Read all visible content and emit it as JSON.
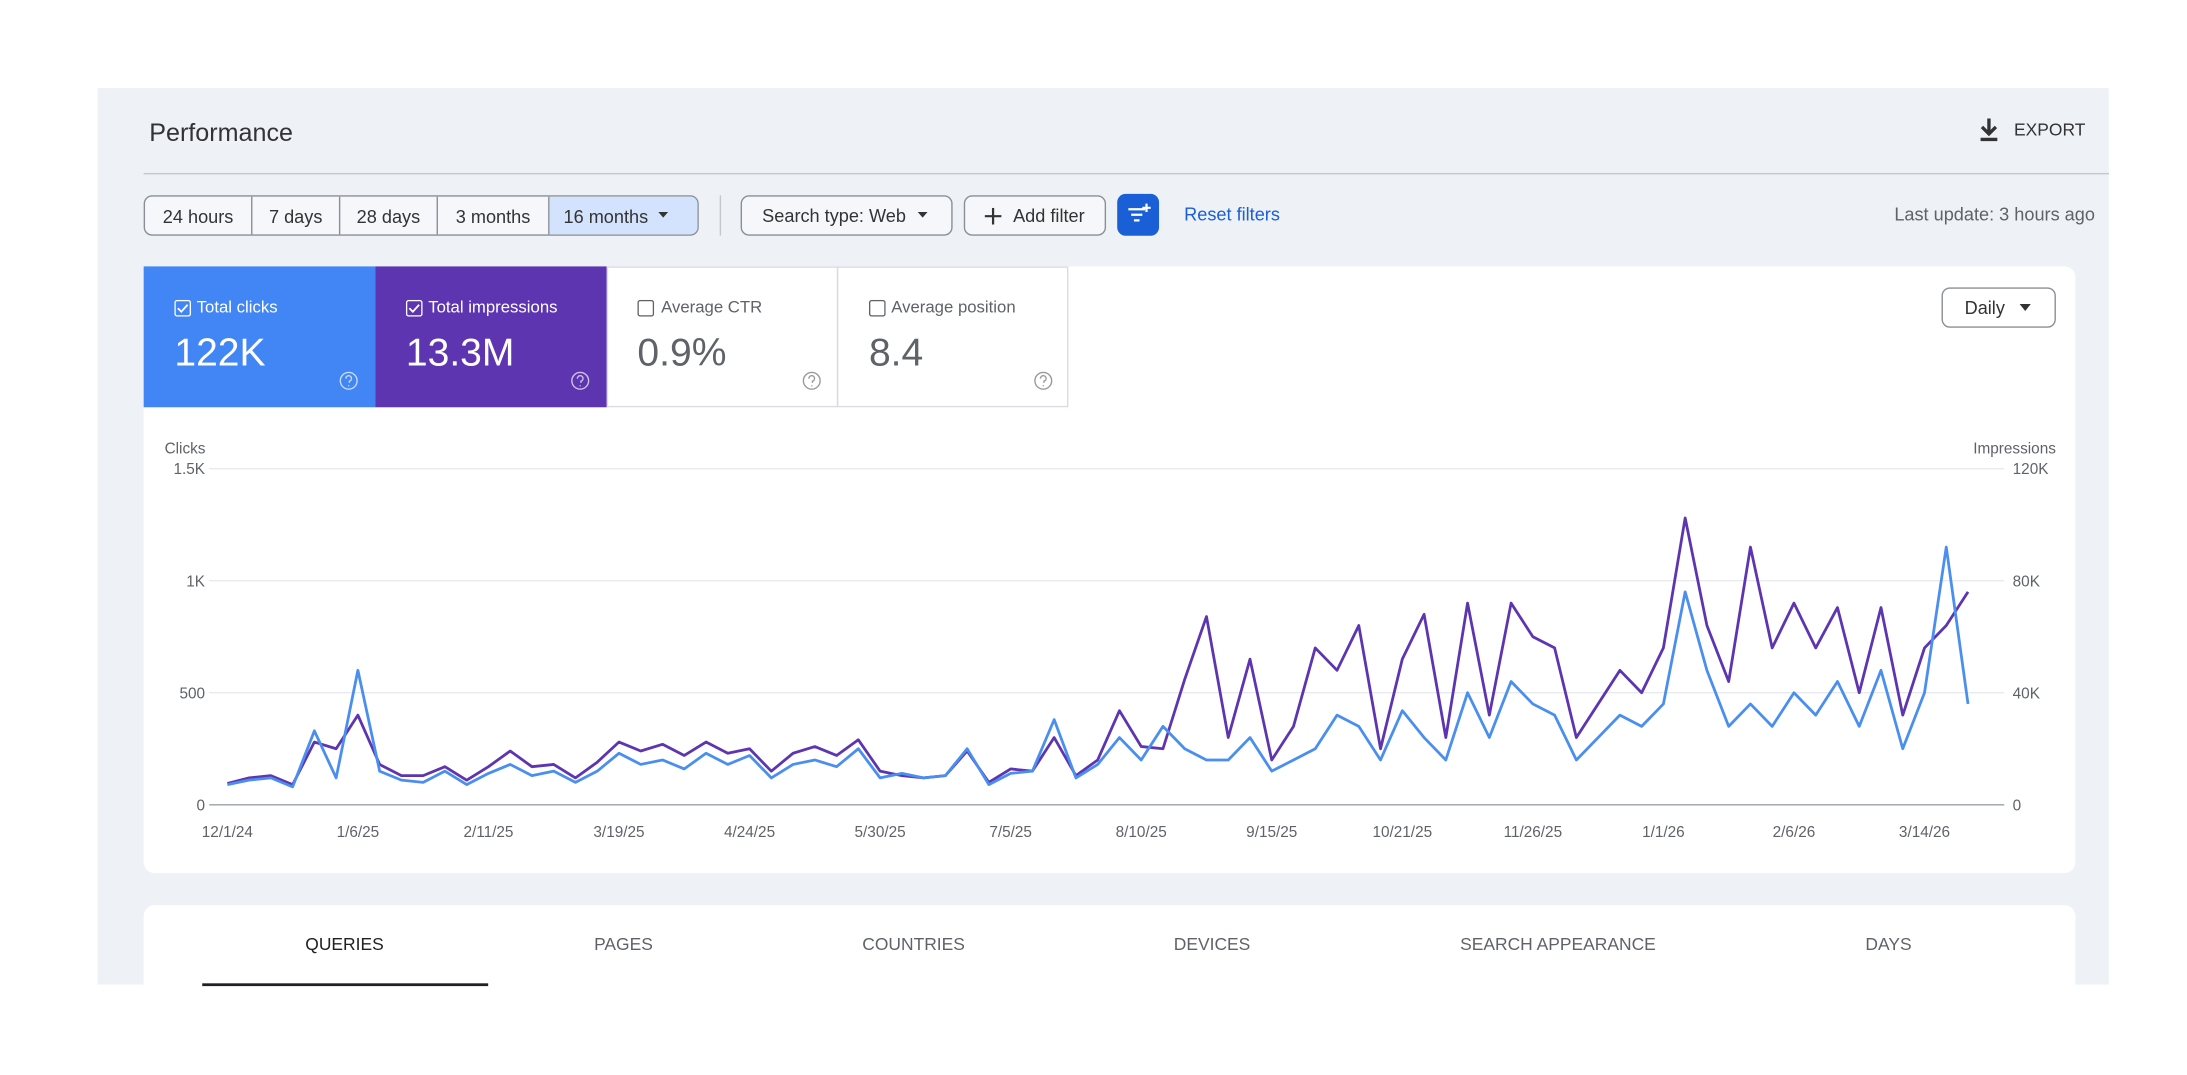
{
  "header": {
    "title": "Performance",
    "export": "EXPORT"
  },
  "filters": {
    "ranges": [
      "24 hours",
      "7 days",
      "28 days",
      "3 months",
      "16 months"
    ],
    "search_type": "Search type: Web",
    "add_filter": "Add filter",
    "reset": "Reset filters",
    "last_update": "Last update: 3 hours ago"
  },
  "metrics": [
    {
      "label": "Total clicks",
      "value": "122K"
    },
    {
      "label": "Total impressions",
      "value": "13.3M"
    },
    {
      "label": "Average CTR",
      "value": "0.9%"
    },
    {
      "label": "Average position",
      "value": "8.4"
    }
  ],
  "granularity": "Daily",
  "tabs": [
    "QUERIES",
    "PAGES",
    "COUNTRIES",
    "DEVICES",
    "SEARCH APPEARANCE",
    "DAYS"
  ],
  "chart_data": {
    "type": "line",
    "y_label": "Clicks",
    "y2_label": "Impressions",
    "grid": true,
    "x": [
      0,
      6,
      12,
      18,
      24,
      30,
      36,
      42,
      48,
      54,
      60,
      66,
      72,
      78,
      84,
      90,
      96,
      102,
      108,
      114,
      120,
      126,
      132,
      138,
      144,
      150,
      156,
      162,
      168,
      174,
      180,
      186,
      192,
      198,
      204,
      210,
      216,
      222,
      228,
      234,
      240,
      246,
      252,
      258,
      264,
      270,
      276,
      282,
      288,
      294,
      300,
      306,
      312,
      318,
      324,
      330,
      336,
      342,
      348,
      354,
      360,
      366,
      372,
      378,
      384,
      390,
      396,
      402,
      408,
      414,
      420,
      426,
      432,
      438,
      444,
      450,
      456,
      462,
      468,
      474,
      480
    ],
    "xlim": [
      -5,
      490
    ],
    "xticks": [
      {
        "value": 0,
        "label": "12/1/24"
      },
      {
        "value": 36,
        "label": "1/6/25"
      },
      {
        "value": 72,
        "label": "2/11/25"
      },
      {
        "value": 108,
        "label": "3/19/25"
      },
      {
        "value": 144,
        "label": "4/24/25"
      },
      {
        "value": 180,
        "label": "5/30/25"
      },
      {
        "value": 216,
        "label": "7/5/25"
      },
      {
        "value": 252,
        "label": "8/10/25"
      },
      {
        "value": 288,
        "label": "9/15/25"
      },
      {
        "value": 324,
        "label": "10/21/25"
      },
      {
        "value": 360,
        "label": "11/26/25"
      },
      {
        "value": 396,
        "label": "1/1/26"
      },
      {
        "value": 432,
        "label": "2/6/26"
      },
      {
        "value": 468,
        "label": "3/14/26"
      }
    ],
    "ylim": [
      0,
      1500
    ],
    "yticks": [
      0,
      500,
      {
        "value": 1000,
        "label": "1K"
      },
      {
        "value": 1500,
        "label": "1.5K"
      }
    ],
    "y2lim": [
      0,
      120000
    ],
    "y2ticks": [
      0,
      {
        "value": 40000,
        "label": "40K"
      },
      {
        "value": 80000,
        "label": "80K"
      },
      {
        "value": 120000,
        "label": "120K"
      }
    ],
    "series": [
      {
        "color": "#5e35b1",
        "axis": "y2",
        "values": [
          7600,
          9600,
          10400,
          7200,
          22400,
          20000,
          32000,
          14400,
          10400,
          10400,
          13600,
          8800,
          13600,
          19200,
          13600,
          14400,
          9600,
          15200,
          22400,
          19200,
          21600,
          17600,
          22400,
          18400,
          20000,
          12000,
          18400,
          20800,
          17600,
          23200,
          12000,
          10400,
          9600,
          10400,
          19200,
          8000,
          12800,
          12000,
          24000,
          10400,
          16000,
          33600,
          20800,
          20000,
          44800,
          67200,
          24000,
          52000,
          16000,
          28000,
          56000,
          48000,
          64000,
          20000,
          52000,
          68000,
          24000,
          72000,
          32000,
          72000,
          60000,
          56000,
          24000,
          36000,
          48000,
          40000,
          56000,
          102400,
          64000,
          44000,
          92000,
          56000,
          72000,
          56000,
          70400,
          40000,
          70400,
          32000,
          56000,
          64000,
          76000
        ]
      },
      {
        "color": "#4a8ff0",
        "values": [
          90,
          110,
          120,
          80,
          330,
          120,
          600,
          150,
          110,
          100,
          150,
          90,
          140,
          180,
          130,
          150,
          100,
          150,
          230,
          180,
          200,
          160,
          230,
          180,
          220,
          120,
          180,
          200,
          170,
          250,
          120,
          140,
          120,
          130,
          250,
          90,
          140,
          150,
          380,
          120,
          180,
          300,
          200,
          350,
          250,
          200,
          200,
          300,
          150,
          200,
          250,
          400,
          350,
          200,
          420,
          300,
          200,
          500,
          300,
          550,
          450,
          400,
          200,
          300,
          400,
          350,
          450,
          950,
          600,
          350,
          450,
          350,
          500,
          400,
          550,
          350,
          600,
          250,
          500,
          1150,
          450
        ]
      }
    ]
  }
}
